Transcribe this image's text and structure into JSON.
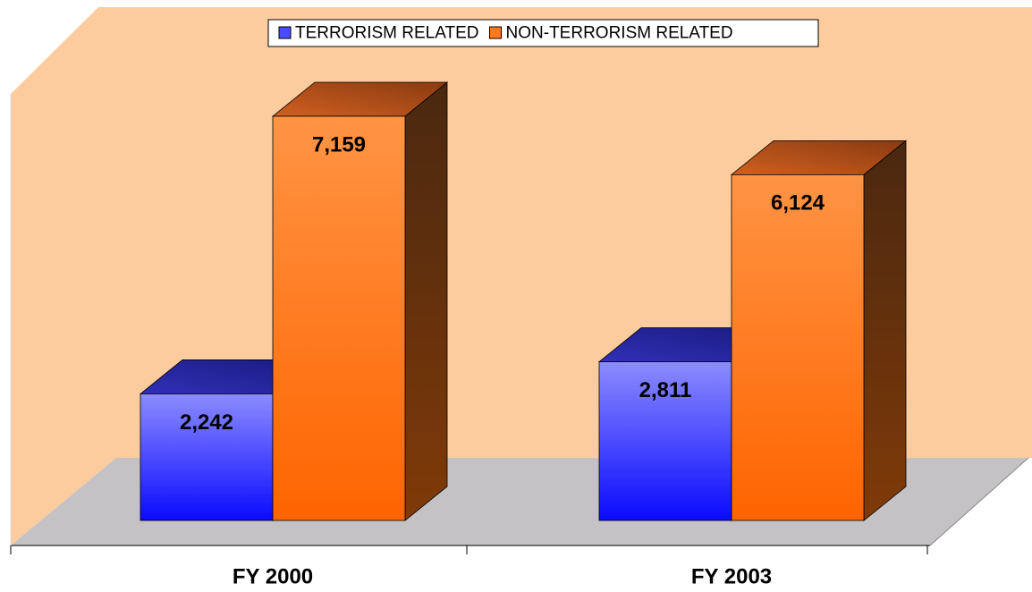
{
  "chart_data": {
    "type": "bar3d",
    "categories": [
      "FY 2000",
      "FY 2003"
    ],
    "series": [
      {
        "name": "TERRORISM RELATED",
        "color": "#4b4bff",
        "values": [
          2242,
          2811
        ],
        "value_labels": [
          "2,242",
          "2,811"
        ]
      },
      {
        "name": "NON-TERRORISM RELATED",
        "color": "#ff7a1f",
        "values": [
          7159,
          6124
        ],
        "value_labels": [
          "7,159",
          "6,124"
        ]
      }
    ],
    "legend": "top"
  }
}
